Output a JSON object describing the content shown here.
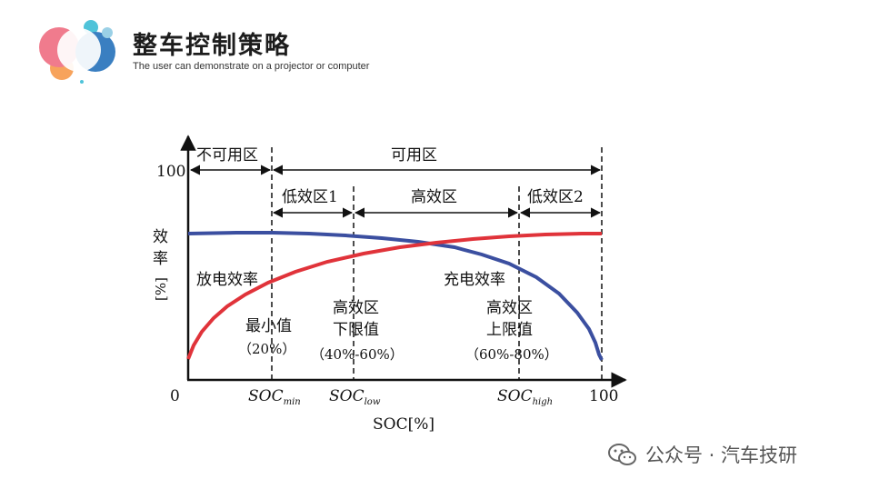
{
  "header": {
    "title": "整车控制策略",
    "subtitle": "The user can demonstrate on a projector or computer",
    "logo_colors": [
      "#f07b8d",
      "#f7a35c",
      "#4fc3d9",
      "#3a7fc1",
      "#9ad0e6"
    ]
  },
  "diagram": {
    "y_axis_label": [
      "效",
      "率",
      "[%]"
    ],
    "y_tick_100": "100",
    "origin_label": "0",
    "x_tick_100": "100",
    "x_axis_label": "SOC[%]",
    "soc_min": {
      "base": "SOC",
      "sub": "min"
    },
    "soc_low": {
      "base": "SOC",
      "sub": "low"
    },
    "soc_high": {
      "base": "SOC",
      "sub": "high"
    },
    "region_unusable": "不可用区",
    "region_usable": "可用区",
    "region_low1": "低效区1",
    "region_high": "高效区",
    "region_low2": "低效区2",
    "discharge_label": "放电效率",
    "charge_label": "充电效率",
    "min_value_label": [
      "最小值",
      "（20%）"
    ],
    "lower_limit_label": [
      "高效区",
      "下限值",
      "（40%-60%）"
    ],
    "upper_limit_label": [
      "高效区",
      "上限值",
      "（60%-80%）"
    ],
    "discharge_color": "#3b4fa0",
    "charge_color": "#e0333a"
  },
  "watermark": {
    "text": "公众号 · 汽车技研",
    "icon": "wechat-icon"
  }
}
